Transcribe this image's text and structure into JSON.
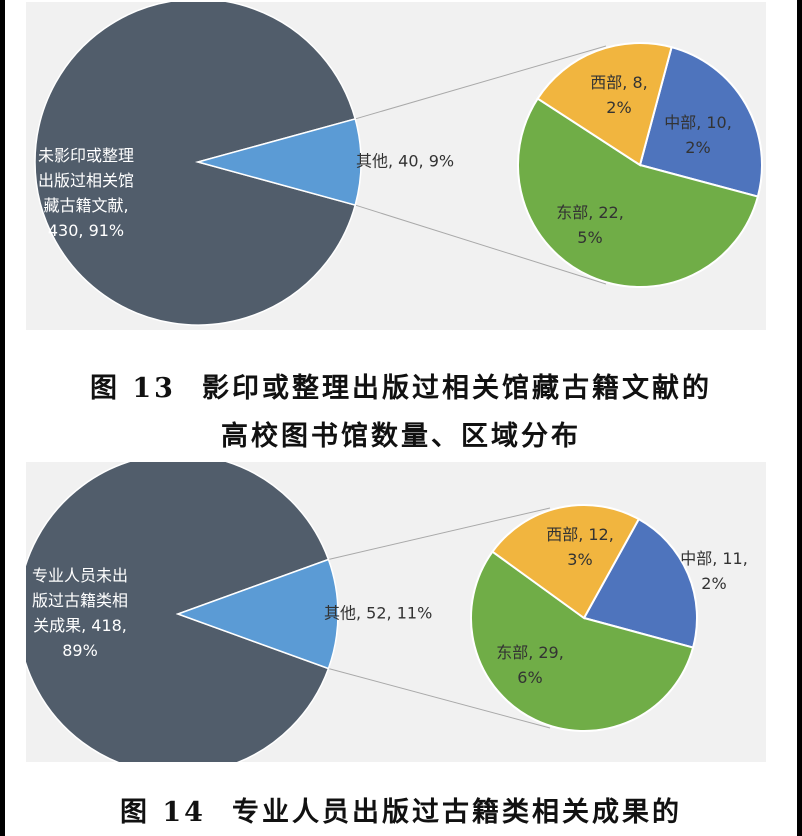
{
  "figures": [
    {
      "id": "fig13",
      "caption_number": "图 13",
      "caption_lines": [
        "影印或整理出版过相关馆藏古籍文献的",
        "高校图书馆数量、区域分布"
      ],
      "chart_data": {
        "type": "pie",
        "main_pie": {
          "slices": [
            {
              "label_lines": [
                "未影印或整理",
                "出版过相关馆",
                "藏古籍文献,",
                "430, 91%"
              ],
              "value": 430,
              "percent": 91,
              "color": "#515d6b"
            },
            {
              "label_lines": [
                "其他, 40, 9%"
              ],
              "value": 40,
              "percent": 9,
              "color": "#5b9bd5"
            }
          ]
        },
        "sub_pie": {
          "slices": [
            {
              "label_lines": [
                "中部, 10,",
                "2%"
              ],
              "value": 10,
              "percent": 2,
              "color": "#4e74bd"
            },
            {
              "label_lines": [
                "东部, 22,",
                "5%"
              ],
              "value": 22,
              "percent": 5,
              "color": "#70ad47"
            },
            {
              "label_lines": [
                "西部, 8,",
                "2%"
              ],
              "value": 8,
              "percent": 2,
              "color": "#f1b53f"
            }
          ]
        }
      }
    },
    {
      "id": "fig14",
      "caption_number": "图 14",
      "caption_lines": [
        "专业人员出版过古籍类相关成果的"
      ],
      "chart_data": {
        "type": "pie",
        "main_pie": {
          "slices": [
            {
              "label_lines": [
                "专业人员未出",
                "版过古籍类相",
                "关成果, 418,",
                "89%"
              ],
              "value": 418,
              "percent": 89,
              "color": "#515d6b"
            },
            {
              "label_lines": [
                "其他, 52, 11%"
              ],
              "value": 52,
              "percent": 11,
              "color": "#5b9bd5"
            }
          ]
        },
        "sub_pie": {
          "slices": [
            {
              "label_lines": [
                "中部, 11,",
                "2%"
              ],
              "value": 11,
              "percent": 2,
              "color": "#4e74bd"
            },
            {
              "label_lines": [
                "东部, 29,",
                "6%"
              ],
              "value": 29,
              "percent": 6,
              "color": "#70ad47"
            },
            {
              "label_lines": [
                "西部, 12,",
                "3%"
              ],
              "value": 12,
              "percent": 3,
              "color": "#f1b53f"
            }
          ]
        }
      }
    }
  ]
}
